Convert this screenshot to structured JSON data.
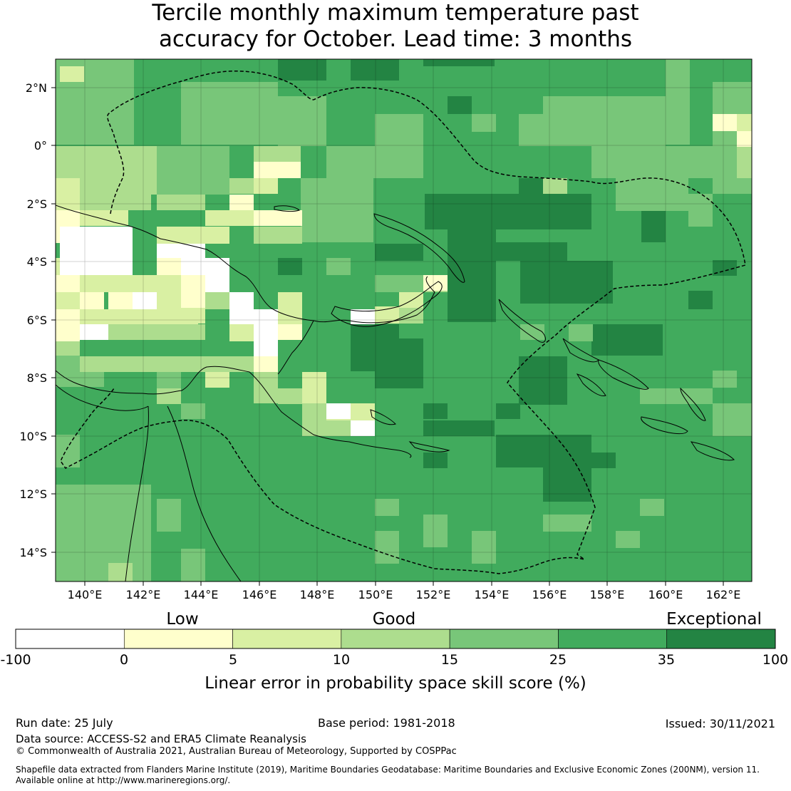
{
  "title": {
    "line1": "Tercile monthly maximum temperature past",
    "line2": "accuracy for October. Lead time: 3 months"
  },
  "map": {
    "lat_labels": [
      "2°N",
      "0°",
      "2°S",
      "4°S",
      "6°S",
      "8°S",
      "10°S",
      "12°S",
      "14°S"
    ],
    "lon_labels": [
      "140°E",
      "142°E",
      "144°E",
      "146°E",
      "148°E",
      "150°E",
      "152°E",
      "154°E",
      "156°E",
      "158°E",
      "160°E",
      "162°E"
    ],
    "ocean_fill": "#41ab5d"
  },
  "legend": {
    "categories": [
      "Low",
      "Good",
      "Exceptional"
    ],
    "tick_labels": [
      "-100",
      "0",
      "5",
      "10",
      "15",
      "25",
      "35",
      "100"
    ],
    "colors": [
      "#ffffff",
      "#ffffcc",
      "#d9f0a3",
      "#addd8e",
      "#78c679",
      "#41ab5d",
      "#238443"
    ],
    "bins": [
      [
        -100,
        0
      ],
      [
        0,
        5
      ],
      [
        5,
        10
      ],
      [
        10,
        15
      ],
      [
        15,
        25
      ],
      [
        25,
        35
      ],
      [
        35,
        100
      ]
    ],
    "label": "Linear error in probability space skill score (%)"
  },
  "footer": {
    "run_date": "Run date: 25 July",
    "base_period": "Base period: 1981-2018",
    "issued": "Issued: 30/11/2021",
    "data_source": "Data source: ACCESS-S2 and ERA5 Climate Reanalysis",
    "copyright": "© Commonwealth of Australia 2021, Australian Bureau of Meteorology, Supported by COSPPac",
    "shapefile_line1": "Shapefile data extracted from Flanders Marine Institute (2019), Maritime Boundaries Geodatabase: Maritime Boundaries and Exclusive Economic Zones (200NM), version 11.",
    "shapefile_line2": "Available online at http://www.marineregions.org/."
  }
}
